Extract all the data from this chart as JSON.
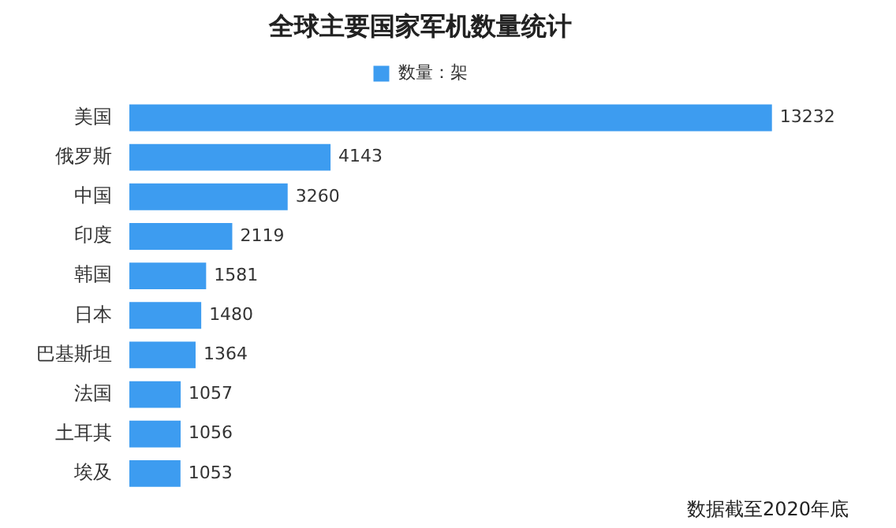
{
  "chart_data": {
    "type": "bar",
    "orientation": "horizontal",
    "title": "全球主要国家军机数量统计",
    "categories": [
      "美国",
      "俄罗斯",
      "中国",
      "印度",
      "韩国",
      "日本",
      "巴基斯坦",
      "法国",
      "土耳其",
      "埃及"
    ],
    "series": [
      {
        "name": "数量：架",
        "color": "#3d9cf0",
        "values": [
          13232,
          4143,
          3260,
          2119,
          1581,
          1480,
          1364,
          1057,
          1056,
          1053
        ]
      }
    ],
    "data_labels": true,
    "legend": "top",
    "grid": false,
    "annotations": [
      "数据截至2020年底"
    ]
  }
}
